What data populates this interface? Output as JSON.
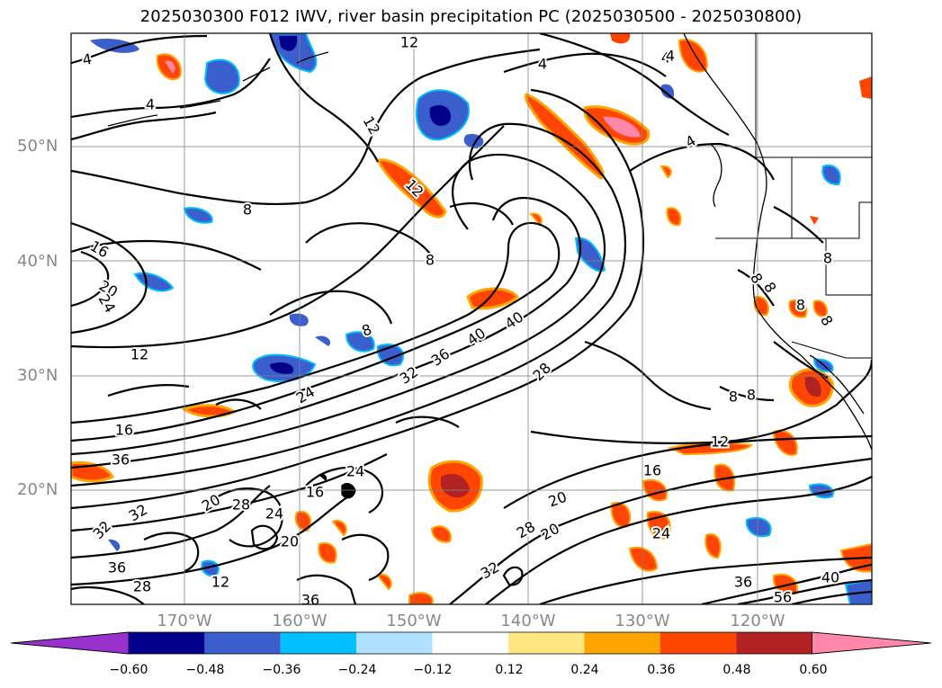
{
  "title": "2025030300 F012 IWV, river basin precipitation PC (2025030500 - 2025030800)",
  "lat_labels": [
    "50°N",
    "40°N",
    "30°N",
    "20°N"
  ],
  "lon_labels": [
    "170°W",
    "160°W",
    "150°W",
    "140°W",
    "130°W",
    "120°W"
  ],
  "colorbar": {
    "labels": [
      "−0.60",
      "−0.48",
      "−0.36",
      "−0.24",
      "−0.12",
      "0.12",
      "0.24",
      "0.36",
      "0.48",
      "0.60"
    ],
    "colors": [
      "#9932CC",
      "#00008B",
      "#3A5FCD",
      "#00BFFF",
      "#B0E2FF",
      "#FFFFFF",
      "#FFE680",
      "#FFA500",
      "#FF4500",
      "#B22222",
      "#FF88AA"
    ]
  },
  "contour_labels": [
    "4",
    "4",
    "4",
    "12",
    "8",
    "12",
    "8",
    "8",
    "12",
    "4",
    "16",
    "20",
    "24",
    "12",
    "8",
    "4",
    "8",
    "40",
    "40",
    "36",
    "32",
    "28",
    "24",
    "16",
    "12",
    "16",
    "36",
    "24",
    "20",
    "28",
    "32",
    "24",
    "20",
    "32",
    "36",
    "28",
    "36",
    "32",
    "28",
    "20",
    "24",
    "12",
    "16",
    "20",
    "36",
    "40",
    "56",
    "8",
    "8",
    "8",
    "8",
    "8",
    "4"
  ]
}
